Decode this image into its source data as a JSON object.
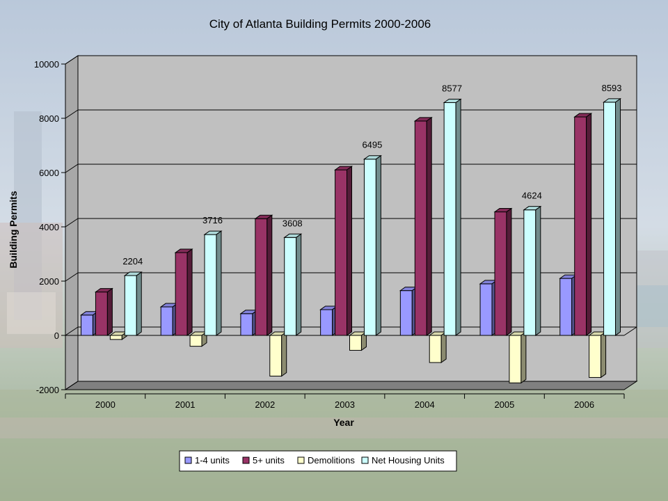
{
  "chart_data": {
    "type": "bar",
    "title": "City of Atlanta Building Permits 2000-2006",
    "xlabel": "Year",
    "ylabel": "Building Permits",
    "ylim": [
      -2000,
      10000
    ],
    "yticks": [
      "10000",
      "8000",
      "6000",
      "4000",
      "2000",
      "0",
      "-2000"
    ],
    "categories": [
      "2000",
      "2001",
      "2002",
      "2003",
      "2004",
      "2005",
      "2006"
    ],
    "grid": true,
    "legend": "bottom",
    "series": [
      {
        "name": "1-4 units",
        "color": "#9999ff",
        "values": [
          750,
          1050,
          800,
          950,
          1650,
          1900,
          2100
        ]
      },
      {
        "name": "5+ units",
        "color": "#993366",
        "values": [
          1600,
          3050,
          4300,
          6100,
          7900,
          4550,
          8050
        ]
      },
      {
        "name": "Demolitions",
        "color": "#ffffcc",
        "values": [
          -150,
          -400,
          -1500,
          -550,
          -1000,
          -1750,
          -1550
        ]
      },
      {
        "name": "Net Housing Units",
        "color": "#ccffff",
        "values": [
          2204,
          3716,
          3608,
          6495,
          8577,
          4624,
          8593
        ]
      }
    ],
    "data_labels": {
      "series": "Net Housing Units",
      "labels": [
        "2204",
        "3716",
        "3608",
        "6495",
        "8577",
        "4624",
        "8593"
      ]
    }
  }
}
